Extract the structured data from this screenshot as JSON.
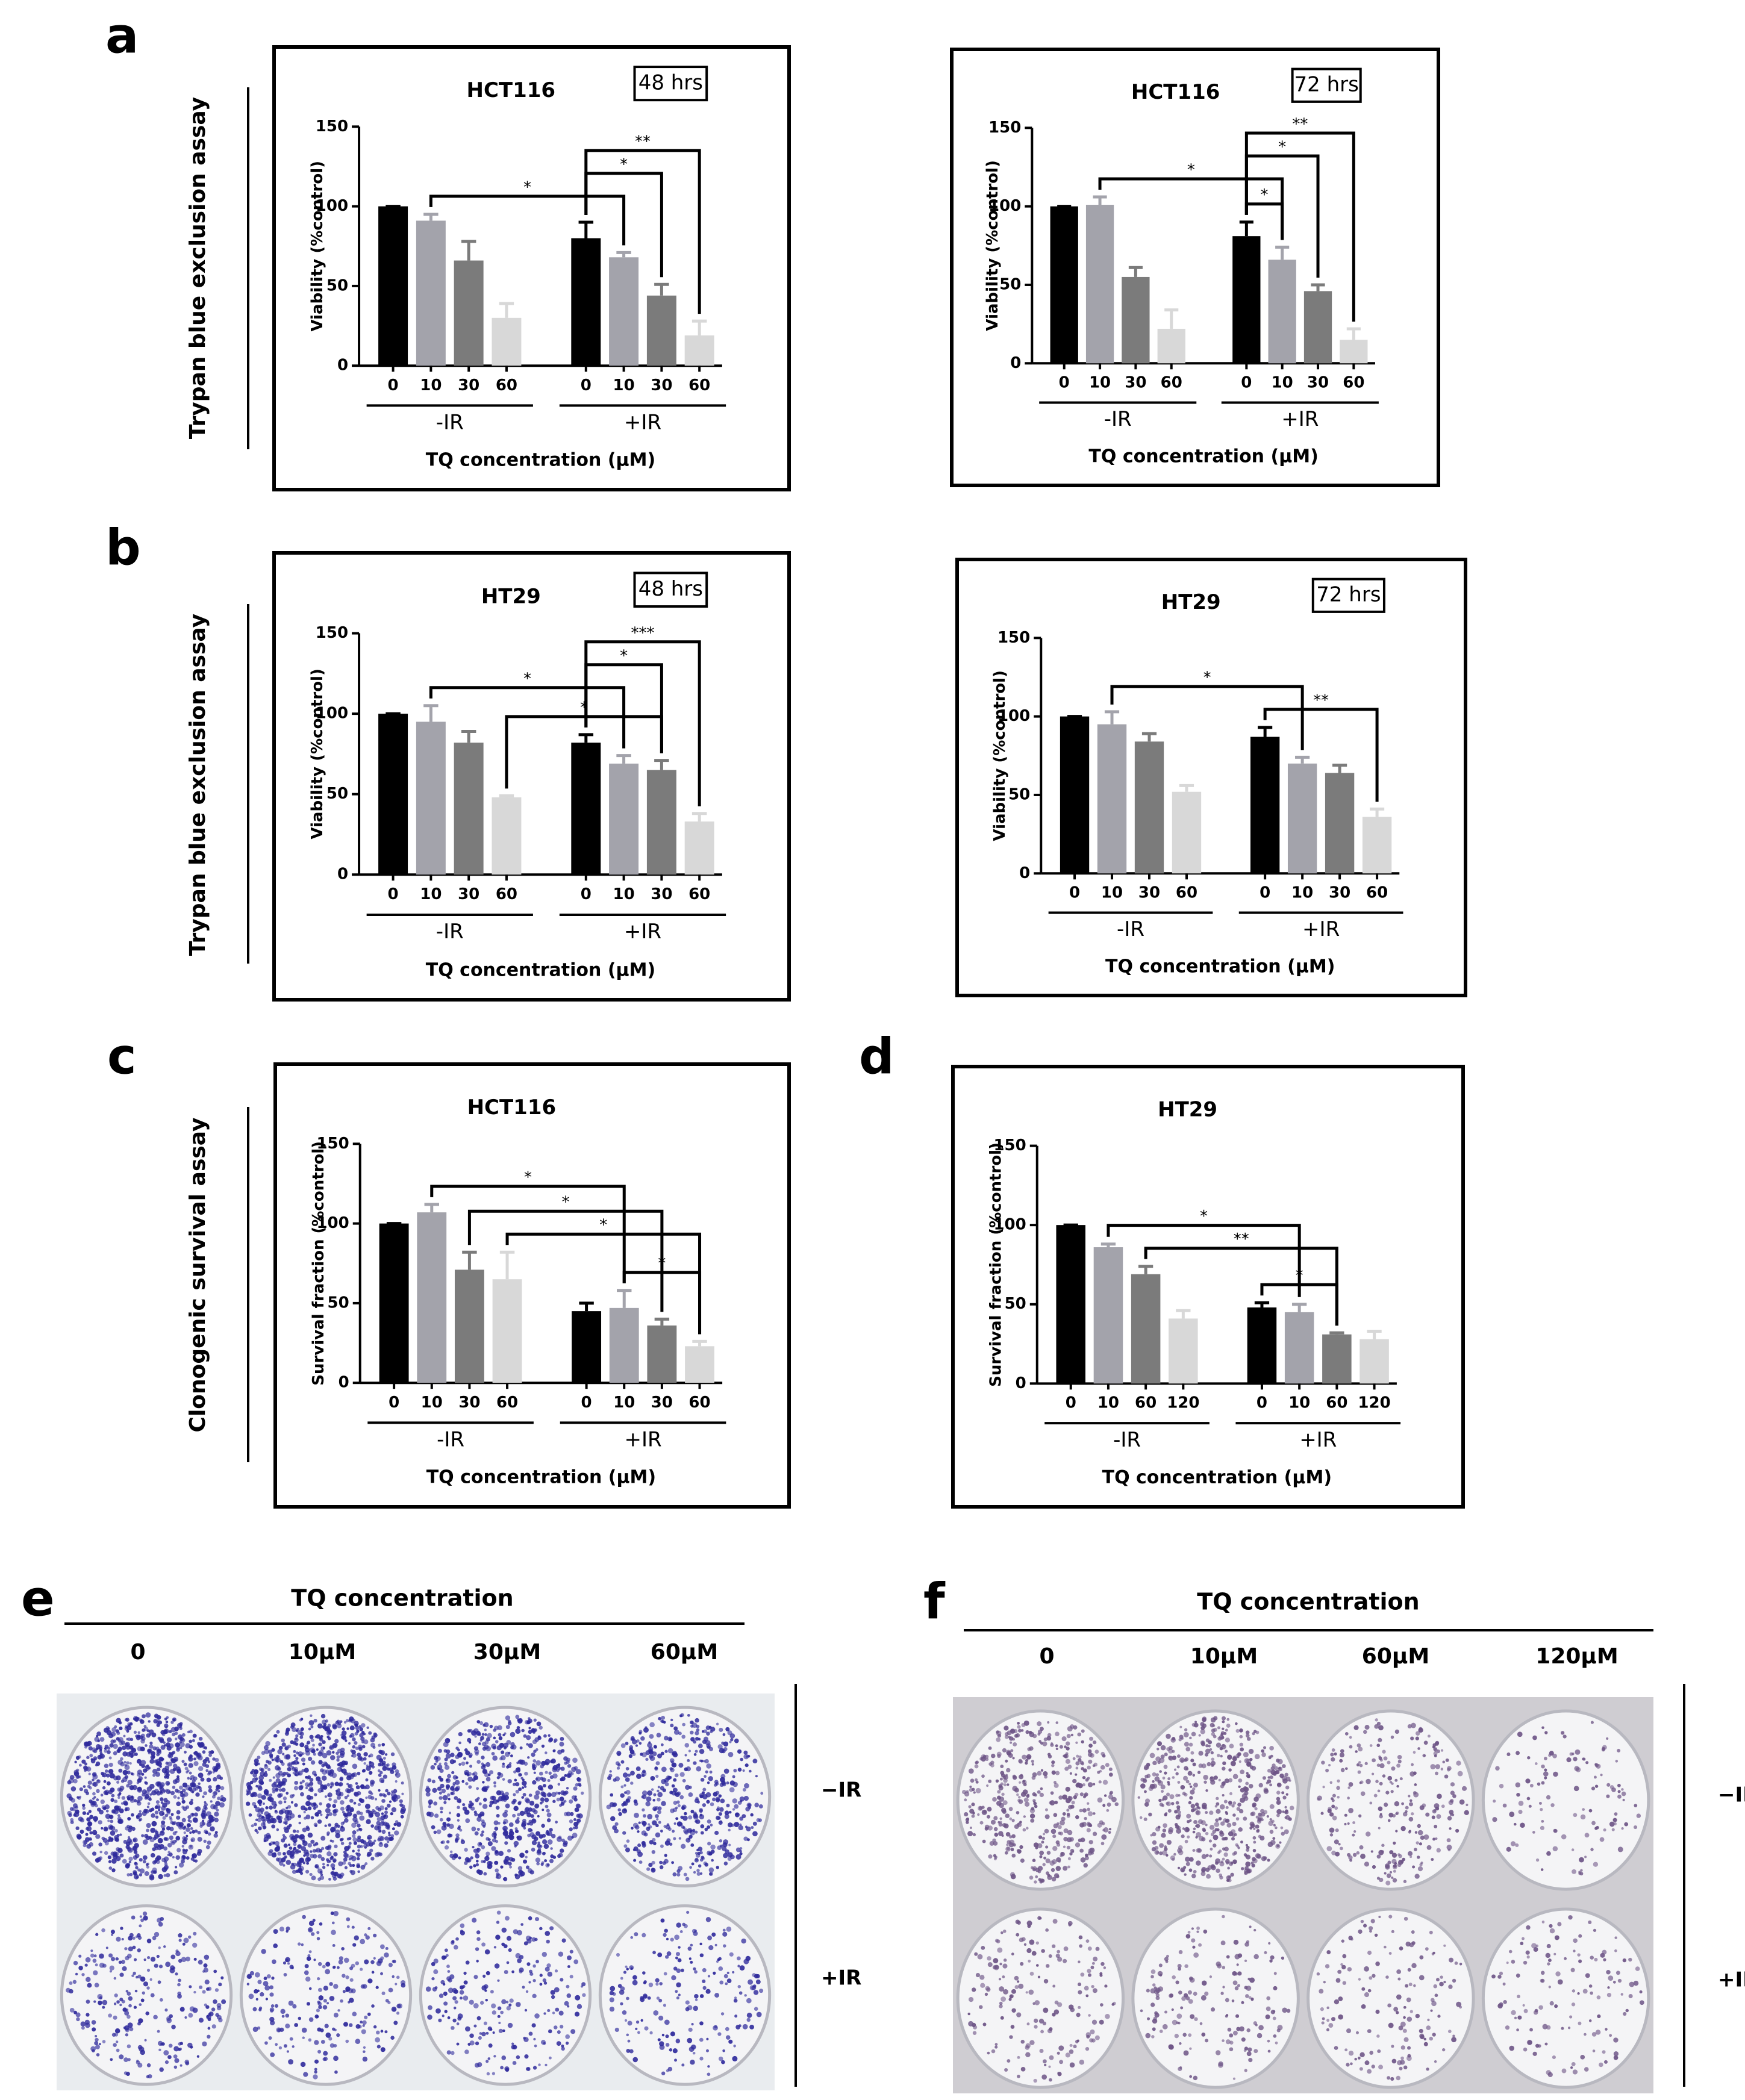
{
  "chart_data": [
    {
      "type": "bar",
      "title": "HCT116",
      "badge": "48 hrs",
      "ylabel": "Viability (%control)",
      "xlabel": "TQ concentration (μM)",
      "categories": [
        "0",
        "10",
        "30",
        "60",
        "0",
        "10",
        "30",
        "60"
      ],
      "groups": [
        "-IR",
        "+IR"
      ],
      "values": [
        100,
        91,
        66,
        30,
        80,
        68,
        44,
        19
      ],
      "errors": [
        0,
        4,
        12,
        9,
        10,
        3,
        7,
        9
      ],
      "colors": [
        "#000000",
        "#a3a3ab",
        "#7b7b7b",
        "#d8d8d8",
        "#000000",
        "#a3a3ab",
        "#7b7b7b",
        "#d8d8d8"
      ],
      "ylim": [
        0,
        150
      ],
      "yticks": [
        0,
        50,
        100,
        150
      ],
      "significance": [
        {
          "label": "*",
          "from": 1,
          "to": 5
        },
        {
          "label": "*",
          "from": 4,
          "to": 6
        },
        {
          "label": "**",
          "from": 4,
          "to": 7
        }
      ]
    },
    {
      "type": "bar",
      "title": "HCT116",
      "badge": "72 hrs",
      "ylabel": "Viability (%control)",
      "xlabel": "TQ concentration (μM)",
      "categories": [
        "0",
        "10",
        "30",
        "60",
        "0",
        "10",
        "30",
        "60"
      ],
      "groups": [
        "-IR",
        "+IR"
      ],
      "values": [
        100,
        101,
        55,
        22,
        81,
        66,
        46,
        15
      ],
      "errors": [
        0,
        5,
        6,
        12,
        9,
        8,
        4,
        7
      ],
      "colors": [
        "#000000",
        "#a3a3ab",
        "#7b7b7b",
        "#d8d8d8",
        "#000000",
        "#a3a3ab",
        "#7b7b7b",
        "#d8d8d8"
      ],
      "ylim": [
        0,
        150
      ],
      "yticks": [
        0,
        50,
        100,
        150
      ],
      "significance": [
        {
          "label": "*",
          "from": 4,
          "to": 5
        },
        {
          "label": "*",
          "from": 1,
          "to": 5
        },
        {
          "label": "*",
          "from": 4,
          "to": 6
        },
        {
          "label": "**",
          "from": 4,
          "to": 7
        }
      ]
    },
    {
      "type": "bar",
      "title": "HT29",
      "badge": "48 hrs",
      "ylabel": "Viability (%control)",
      "xlabel": "TQ concentration (μM)",
      "categories": [
        "0",
        "10",
        "30",
        "60",
        "0",
        "10",
        "30",
        "60"
      ],
      "groups": [
        "-IR",
        "+IR"
      ],
      "values": [
        100,
        95,
        82,
        48,
        82,
        69,
        65,
        33
      ],
      "errors": [
        0,
        10,
        7,
        1,
        5,
        5,
        6,
        5
      ],
      "colors": [
        "#000000",
        "#a3a3ab",
        "#7b7b7b",
        "#d8d8d8",
        "#000000",
        "#a3a3ab",
        "#7b7b7b",
        "#d8d8d8"
      ],
      "ylim": [
        0,
        150
      ],
      "yticks": [
        0,
        50,
        100,
        150
      ],
      "significance": [
        {
          "label": "*",
          "from": 3,
          "to": 6
        },
        {
          "label": "*",
          "from": 1,
          "to": 5
        },
        {
          "label": "*",
          "from": 4,
          "to": 6
        },
        {
          "label": "***",
          "from": 4,
          "to": 7
        }
      ]
    },
    {
      "type": "bar",
      "title": "HT29",
      "badge": "72 hrs",
      "ylabel": "Viability (%control)",
      "xlabel": "TQ concentration (μM)",
      "categories": [
        "0",
        "10",
        "30",
        "60",
        "0",
        "10",
        "30",
        "60"
      ],
      "groups": [
        "-IR",
        "+IR"
      ],
      "values": [
        100,
        95,
        84,
        52,
        87,
        70,
        64,
        36
      ],
      "errors": [
        0,
        8,
        5,
        4,
        6,
        4,
        5,
        5
      ],
      "colors": [
        "#000000",
        "#a3a3ab",
        "#7b7b7b",
        "#d8d8d8",
        "#000000",
        "#a3a3ab",
        "#7b7b7b",
        "#d8d8d8"
      ],
      "ylim": [
        0,
        150
      ],
      "yticks": [
        0,
        50,
        100,
        150
      ],
      "significance": [
        {
          "label": "**",
          "from": 4,
          "to": 7
        },
        {
          "label": "*",
          "from": 1,
          "to": 5
        }
      ]
    },
    {
      "type": "bar",
      "title": "HCT116",
      "ylabel": "Survival fraction (%control)",
      "xlabel": "TQ concentration (μM)",
      "categories": [
        "0",
        "10",
        "30",
        "60",
        "0",
        "10",
        "30",
        "60"
      ],
      "groups": [
        "-IR",
        "+IR"
      ],
      "values": [
        100,
        107,
        71,
        65,
        45,
        47,
        36,
        23
      ],
      "errors": [
        0,
        5,
        11,
        17,
        5,
        11,
        4,
        3
      ],
      "colors": [
        "#000000",
        "#a3a3ab",
        "#7b7b7b",
        "#d8d8d8",
        "#000000",
        "#a3a3ab",
        "#7b7b7b",
        "#d8d8d8"
      ],
      "ylim": [
        0,
        150
      ],
      "yticks": [
        0,
        50,
        100,
        150
      ],
      "significance": [
        {
          "label": "*",
          "from": 5,
          "to": 7
        },
        {
          "label": "*",
          "from": 3,
          "to": 7
        },
        {
          "label": "*",
          "from": 2,
          "to": 6
        },
        {
          "label": "*",
          "from": 1,
          "to": 5
        }
      ]
    },
    {
      "type": "bar",
      "title": "HT29",
      "ylabel": "Survival fraction (%control)",
      "xlabel": "TQ concentration (μM)",
      "categories": [
        "0",
        "10",
        "60",
        "120",
        "0",
        "10",
        "60",
        "120"
      ],
      "groups": [
        "-IR",
        "+IR"
      ],
      "values": [
        100,
        86,
        69,
        41,
        48,
        45,
        31,
        28
      ],
      "errors": [
        0,
        2,
        5,
        5,
        3,
        5,
        1,
        5
      ],
      "colors": [
        "#000000",
        "#a3a3ab",
        "#7b7b7b",
        "#d8d8d8",
        "#000000",
        "#a3a3ab",
        "#7b7b7b",
        "#d8d8d8"
      ],
      "ylim": [
        0,
        150
      ],
      "yticks": [
        0,
        50,
        100,
        150
      ],
      "significance": [
        {
          "label": "*",
          "from": 4,
          "to": 6
        },
        {
          "label": "**",
          "from": 2,
          "to": 6
        },
        {
          "label": "*",
          "from": 1,
          "to": 5
        }
      ]
    }
  ],
  "figure": {
    "letters": [
      "a",
      "b",
      "c",
      "d",
      "e",
      "f"
    ],
    "side_labels": [
      "Trypan blue exclusion assay",
      "Trypan blue exclusion assay",
      "Clonogenic survival assay"
    ],
    "photos": [
      {
        "title": "TQ concentration",
        "columns": [
          "0",
          "10μM",
          "30μM",
          "60μM"
        ],
        "rows": [
          "−IR",
          "+IR"
        ]
      },
      {
        "title": "TQ concentration",
        "columns": [
          "0",
          "10μM",
          "60μM",
          "120μM"
        ],
        "rows": [
          "−IR",
          "+IR"
        ]
      }
    ]
  }
}
